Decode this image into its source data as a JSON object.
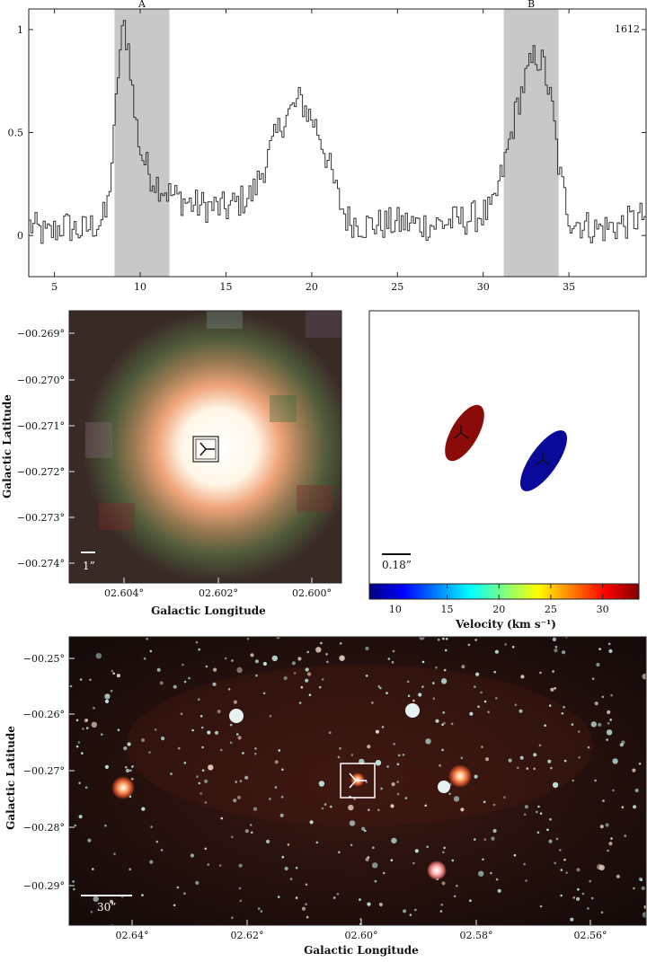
{
  "spectrum": {
    "chart_data": {
      "type": "line",
      "x_range": [
        3.5,
        39.5
      ],
      "ylim": [
        -0.2,
        1.1
      ],
      "x_ticks": [
        5,
        10,
        15,
        20,
        25,
        30,
        35
      ],
      "y_ticks": [
        0,
        0.5,
        1
      ],
      "x_tick_labels": [
        "5",
        "10",
        "15",
        "20",
        "25",
        "30",
        "35"
      ],
      "y_tick_labels": [
        "0",
        "0.5",
        "1"
      ],
      "label": "1612",
      "regions": [
        {
          "name": "A",
          "x0": 8.5,
          "x1": 11.7
        },
        {
          "name": "B",
          "x0": 31.2,
          "x1": 34.4
        }
      ],
      "x": [
        3.5,
        4.5,
        5.5,
        6.5,
        7.5,
        8.0,
        8.4,
        8.7,
        9.0,
        9.3,
        9.6,
        10.0,
        10.5,
        11.0,
        11.7,
        13.0,
        15.0,
        16.5,
        17.5,
        18.2,
        18.9,
        19.3,
        19.7,
        20.1,
        20.5,
        21.0,
        21.5,
        22.0,
        23.0,
        25.0,
        27.0,
        29.0,
        30.5,
        31.2,
        31.6,
        32.0,
        32.5,
        33.0,
        33.5,
        34.0,
        34.4,
        35.0,
        36.5,
        38.0,
        39.5
      ],
      "y": [
        0.05,
        0.0,
        0.05,
        0.02,
        0.06,
        0.1,
        0.45,
        0.85,
        1.02,
        0.9,
        0.6,
        0.4,
        0.3,
        0.25,
        0.2,
        0.15,
        0.13,
        0.2,
        0.4,
        0.55,
        0.62,
        0.66,
        0.6,
        0.55,
        0.47,
        0.33,
        0.18,
        0.08,
        0.05,
        0.06,
        0.05,
        0.08,
        0.12,
        0.35,
        0.5,
        0.65,
        0.78,
        0.88,
        0.82,
        0.6,
        0.3,
        0.08,
        0.03,
        0.05,
        0.1
      ]
    }
  },
  "zoom_image": {
    "ylabel": "Galactic Latitude",
    "xlabel": "Galactic Longitude",
    "y_ticks": [
      "−00.269°",
      "−00.270°",
      "−00.271°",
      "−00.272°",
      "−00.273°",
      "−00.274°"
    ],
    "x_ticks": [
      "02.604°",
      "02.602°",
      "02.600°"
    ],
    "scalebar": "1”"
  },
  "maser_map": {
    "scalebar": "0.18”",
    "colorbar": {
      "label": "Velocity (km s⁻¹)",
      "range": [
        7.5,
        33.5
      ],
      "ticks": [
        10,
        15,
        20,
        25,
        30
      ],
      "tick_labels": [
        "10",
        "15",
        "20",
        "25",
        "30"
      ]
    },
    "components": [
      {
        "name": "red-maser-spot",
        "color": "#8b0a0a"
      },
      {
        "name": "blue-maser-spot",
        "color": "#0a0a9a"
      }
    ]
  },
  "wide_image": {
    "ylabel": "Galactic Latitude",
    "xlabel": "Galactic Longitude",
    "y_ticks": [
      "−00.25°",
      "−00.26°",
      "−00.27°",
      "−00.28°",
      "−00.29°"
    ],
    "x_ticks": [
      "02.64°",
      "02.62°",
      "02.60°",
      "02.58°",
      "02.56°"
    ],
    "scalebar": "30”"
  }
}
